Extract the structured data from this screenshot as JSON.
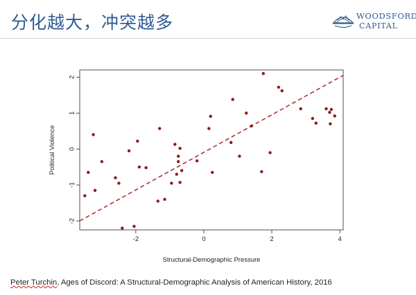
{
  "slide": {
    "title": "分化越大，冲突越多",
    "logo_line1": "WOODSFORD",
    "logo_line2": "CAPITAL"
  },
  "citation": {
    "author": "Peter Turchin",
    "rest": ", Ages of Discord: A Structural-Demographic Analysis of American History, 2016"
  },
  "colors": {
    "title": "#2f5c95",
    "points": "#8b1a1a",
    "trend": "#a52a2a"
  },
  "chart_data": {
    "type": "scatter",
    "xlabel": "Structural-Demographic Pressure",
    "ylabel": "Political Violence",
    "xlim": [
      -3.65,
      4.1
    ],
    "ylim": [
      -2.25,
      2.2
    ],
    "xticks": [
      -2,
      0,
      2,
      4
    ],
    "xtick_labels": [
      "-2",
      "0",
      "2",
      "4"
    ],
    "yticks": [
      -2,
      -1,
      0,
      1,
      2
    ],
    "ytick_labels": [
      "-2",
      "-1",
      "0",
      "1",
      "2"
    ],
    "trend_line": {
      "style": "dashed",
      "x": [
        -3.65,
        4.1
      ],
      "y": [
        -2.0,
        2.05
      ]
    },
    "x": [
      -3.5,
      -3.4,
      -3.25,
      -3.2,
      -3.0,
      -2.6,
      -2.5,
      -2.4,
      -2.2,
      -2.05,
      -1.95,
      -1.9,
      -1.7,
      -1.35,
      -1.3,
      -1.15,
      -0.95,
      -0.85,
      -0.8,
      -0.75,
      -0.75,
      -0.7,
      -0.7,
      -0.65,
      -0.2,
      0.15,
      0.2,
      0.25,
      0.8,
      0.85,
      1.05,
      1.25,
      1.4,
      1.7,
      1.75,
      1.95,
      2.2,
      2.3,
      2.85,
      3.2,
      3.3,
      3.6,
      3.7,
      3.72,
      3.75,
      3.85
    ],
    "y": [
      -1.3,
      -0.65,
      0.4,
      -1.15,
      -0.35,
      -0.8,
      -0.95,
      -2.2,
      -0.05,
      -2.15,
      0.22,
      -0.5,
      -0.52,
      -1.45,
      0.57,
      -1.4,
      -0.95,
      0.13,
      -0.7,
      -0.2,
      -0.35,
      -0.93,
      0.02,
      -0.6,
      -0.33,
      0.57,
      0.91,
      -0.65,
      0.18,
      1.38,
      -0.2,
      1.0,
      0.64,
      -0.63,
      2.1,
      -0.1,
      1.72,
      1.62,
      1.12,
      0.85,
      0.72,
      1.12,
      1.02,
      0.7,
      1.1,
      0.92
    ]
  }
}
